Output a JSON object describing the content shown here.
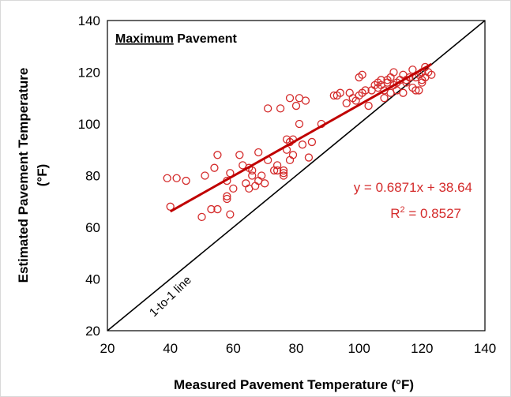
{
  "chart_data": {
    "type": "scatter",
    "title_underlined": "Maximum",
    "title_rest": " Pavement",
    "xlabel": "Measured Pavement Temperature (°F)",
    "ylabel_line1": "Estimated Pavement Temperature",
    "ylabel_line2": "(°F)",
    "xlim": [
      20,
      140
    ],
    "ylim": [
      20,
      140
    ],
    "xticks": [
      20,
      40,
      60,
      80,
      100,
      120,
      140
    ],
    "yticks": [
      20,
      40,
      60,
      80,
      100,
      120,
      140
    ],
    "grid": false,
    "marker_color": "#d42b2b",
    "trend_color": "#c00000",
    "points": [
      [
        39,
        79
      ],
      [
        40,
        68
      ],
      [
        42,
        79
      ],
      [
        45,
        78
      ],
      [
        50,
        64
      ],
      [
        51,
        80
      ],
      [
        53,
        67
      ],
      [
        54,
        83
      ],
      [
        55,
        88
      ],
      [
        55,
        67
      ],
      [
        58,
        72
      ],
      [
        58,
        71
      ],
      [
        58,
        78
      ],
      [
        59,
        65
      ],
      [
        59,
        81
      ],
      [
        60,
        75
      ],
      [
        62,
        88
      ],
      [
        63,
        84
      ],
      [
        64,
        77
      ],
      [
        65,
        83
      ],
      [
        65,
        75
      ],
      [
        66,
        80
      ],
      [
        66,
        82
      ],
      [
        67,
        76
      ],
      [
        68,
        89
      ],
      [
        68,
        78
      ],
      [
        69,
        80
      ],
      [
        70,
        77
      ],
      [
        71,
        86
      ],
      [
        71,
        106
      ],
      [
        73,
        82
      ],
      [
        74,
        82
      ],
      [
        74,
        84
      ],
      [
        75,
        106
      ],
      [
        76,
        81
      ],
      [
        76,
        80
      ],
      [
        76,
        82
      ],
      [
        77,
        94
      ],
      [
        77,
        90
      ],
      [
        78,
        93
      ],
      [
        78,
        86
      ],
      [
        78,
        110
      ],
      [
        79,
        88
      ],
      [
        79,
        94
      ],
      [
        80,
        107
      ],
      [
        81,
        100
      ],
      [
        81,
        110
      ],
      [
        82,
        92
      ],
      [
        83,
        109
      ],
      [
        84,
        87
      ],
      [
        85,
        93
      ],
      [
        88,
        100
      ],
      [
        92,
        111
      ],
      [
        93,
        111
      ],
      [
        94,
        112
      ],
      [
        96,
        108
      ],
      [
        97,
        112
      ],
      [
        99,
        109
      ],
      [
        100,
        111
      ],
      [
        100,
        118
      ],
      [
        101,
        119
      ],
      [
        101,
        112
      ],
      [
        102,
        113
      ],
      [
        103,
        107
      ],
      [
        104,
        113
      ],
      [
        105,
        115
      ],
      [
        106,
        114
      ],
      [
        106,
        116
      ],
      [
        107,
        117
      ],
      [
        108,
        110
      ],
      [
        108,
        113
      ],
      [
        109,
        116
      ],
      [
        109,
        117
      ],
      [
        110,
        118
      ],
      [
        110,
        112
      ],
      [
        111,
        115
      ],
      [
        111,
        120
      ],
      [
        112,
        113
      ],
      [
        112,
        116
      ],
      [
        113,
        117
      ],
      [
        114,
        112
      ],
      [
        114,
        119
      ],
      [
        115,
        117
      ],
      [
        115,
        116
      ],
      [
        116,
        118
      ],
      [
        117,
        121
      ],
      [
        117,
        114
      ],
      [
        118,
        113
      ],
      [
        118,
        118
      ],
      [
        119,
        113
      ],
      [
        119,
        119
      ],
      [
        120,
        116
      ],
      [
        120,
        120
      ],
      [
        121,
        122
      ],
      [
        121,
        118
      ],
      [
        122,
        120
      ],
      [
        123,
        119
      ],
      [
        120,
        117
      ],
      [
        107,
        115
      ],
      [
        98,
        110
      ]
    ],
    "trendline": {
      "slope": 0.6871,
      "intercept": 38.64,
      "x_range": [
        40,
        123
      ]
    },
    "equation_text": "y = 0.6871x + 38.64",
    "r2_prefix": "R",
    "r2_sup": "2",
    "r2_value": " = 0.8527",
    "reference_line": {
      "from": [
        20,
        20
      ],
      "to": [
        140,
        140
      ]
    },
    "reference_line_label": "1-to-1 line"
  }
}
